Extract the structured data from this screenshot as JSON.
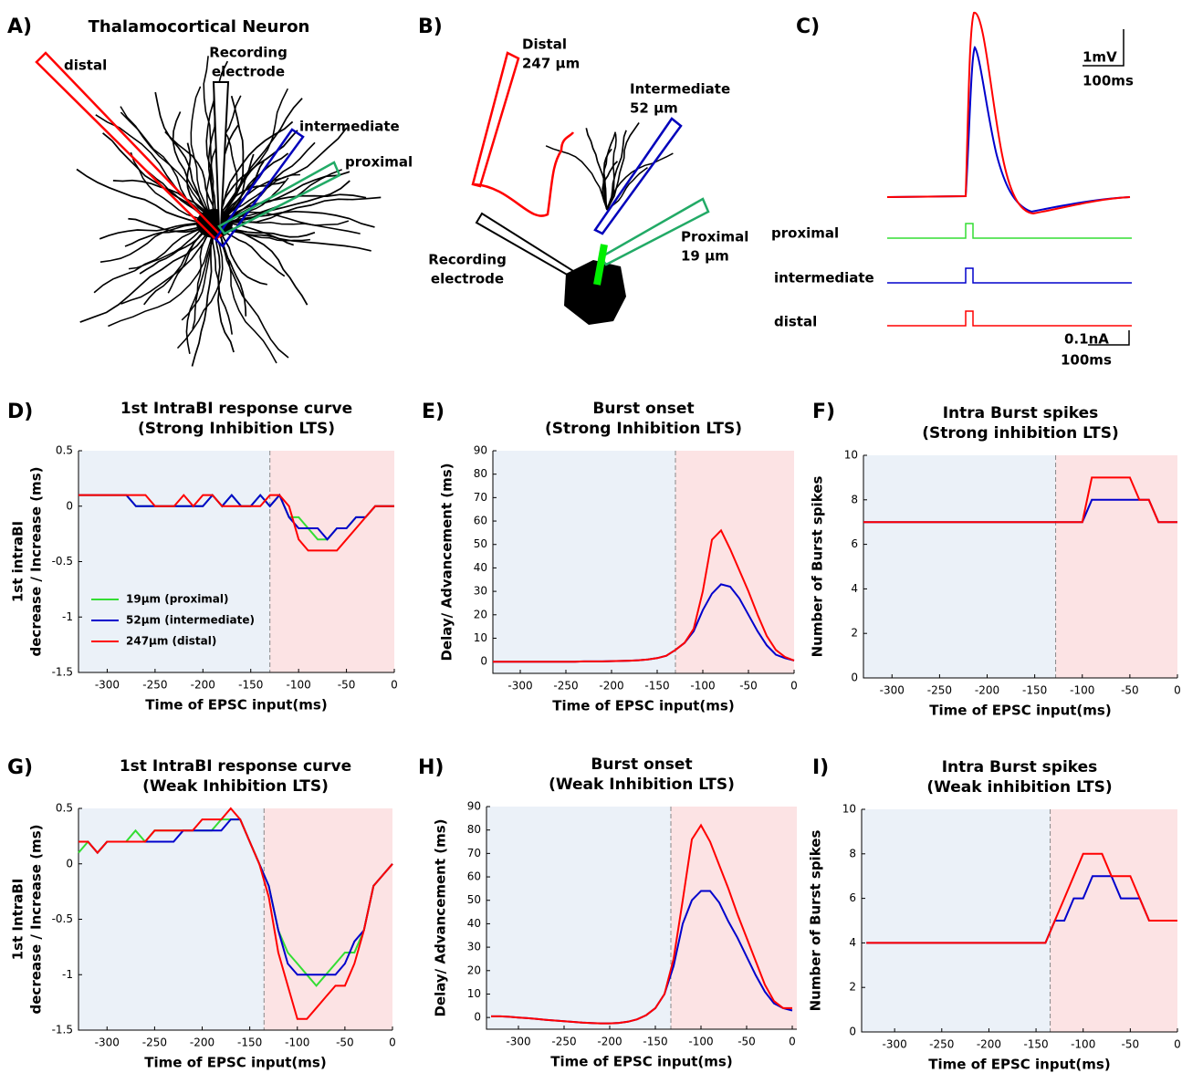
{
  "diagrams": {
    "a": {
      "letter": "A)",
      "title": "Thalamocortical Neuron",
      "distal": "distal",
      "recording": [
        "Recording",
        "electrode"
      ],
      "intermediate": "intermediate",
      "proximal": "proximal"
    },
    "b": {
      "letter": "B)",
      "distal": [
        "Distal",
        "247 µm"
      ],
      "intermediate": [
        "Intermediate",
        "52 µm"
      ],
      "proximal": [
        "Proximal",
        "19 µm"
      ],
      "recording": [
        "Recording",
        "electrode"
      ]
    },
    "c": {
      "letter": "C)",
      "voltage_scale": "1mV",
      "voltage_time": "100ms",
      "proximal": "proximal",
      "intermediate": "intermediate",
      "distal": "distal",
      "current_scale": "0.1nA",
      "current_time": "100ms"
    }
  },
  "chart_data": [
    {
      "type": "line",
      "letter": "D)",
      "title": [
        "1st IntraBI response curve",
        "(Strong Inhibition LTS)"
      ],
      "xlabel": "Time of EPSC input(ms)",
      "ylabel": [
        "1st intraBI",
        "decrease / Increase (ms)"
      ],
      "xlim": [
        -330,
        0
      ],
      "xticks": [
        -300,
        -250,
        -200,
        -150,
        -100,
        -50,
        0
      ],
      "ylim": [
        -1.5,
        0.5
      ],
      "yticks": [
        -1.5,
        -1,
        -0.5,
        0,
        0.5
      ],
      "divider_x": -130,
      "x": [
        -330,
        -320,
        -310,
        -300,
        -290,
        -280,
        -270,
        -260,
        -250,
        -240,
        -230,
        -220,
        -210,
        -200,
        -190,
        -180,
        -170,
        -160,
        -150,
        -140,
        -130,
        -120,
        -110,
        -100,
        -90,
        -80,
        -70,
        -60,
        -50,
        -40,
        -30,
        -20,
        -10,
        0
      ],
      "series": [
        {
          "name": "19µm (proximal)",
          "color": "#33dd33",
          "values": [
            0.1,
            0.1,
            0.1,
            0.1,
            0.1,
            0.1,
            0,
            0,
            0,
            0,
            0,
            0,
            0,
            0,
            0.1,
            0,
            0.1,
            0,
            0,
            0.1,
            0,
            0.1,
            -0.1,
            -0.1,
            -0.2,
            -0.3,
            -0.3,
            -0.2,
            -0.2,
            -0.1,
            -0.1,
            0,
            0,
            0
          ]
        },
        {
          "name": "52µm (intermediate)",
          "color": "#0000cc",
          "values": [
            0.1,
            0.1,
            0.1,
            0.1,
            0.1,
            0.1,
            0,
            0,
            0,
            0,
            0,
            0,
            0,
            0,
            0.1,
            0,
            0.1,
            0,
            0,
            0.1,
            0,
            0.1,
            -0.1,
            -0.2,
            -0.2,
            -0.2,
            -0.3,
            -0.2,
            -0.2,
            -0.1,
            -0.1,
            0,
            0,
            0
          ]
        },
        {
          "name": "247µm (distal)",
          "color": "#ff0000",
          "values": [
            0.1,
            0.1,
            0.1,
            0.1,
            0.1,
            0.1,
            0.1,
            0.1,
            0,
            0,
            0,
            0.1,
            0,
            0.1,
            0.1,
            0,
            0,
            0,
            0,
            0,
            0.1,
            0.1,
            0,
            -0.3,
            -0.4,
            -0.4,
            -0.4,
            -0.4,
            -0.3,
            -0.2,
            -0.1,
            0,
            0,
            0
          ]
        }
      ]
    },
    {
      "type": "line",
      "letter": "E)",
      "title": [
        "Burst onset",
        "(Strong Inhibition LTS)"
      ],
      "xlabel": "Time of EPSC input(ms)",
      "ylabel": [
        "Delay/ Advancement (ms)"
      ],
      "xlim": [
        -330,
        0
      ],
      "xticks": [
        -300,
        -250,
        -200,
        -150,
        -100,
        -50,
        0
      ],
      "ylim": [
        -5,
        90
      ],
      "yticks": [
        0,
        10,
        20,
        30,
        40,
        50,
        60,
        70,
        80,
        90
      ],
      "divider_x": -130,
      "x": [
        -330,
        -320,
        -310,
        -300,
        -290,
        -280,
        -270,
        -260,
        -250,
        -240,
        -230,
        -220,
        -210,
        -200,
        -190,
        -180,
        -170,
        -160,
        -150,
        -140,
        -130,
        -120,
        -110,
        -100,
        -90,
        -80,
        -70,
        -60,
        -50,
        -40,
        -30,
        -20,
        -10,
        0
      ],
      "series": [
        {
          "color": "#0000cc",
          "values": [
            0,
            0,
            0,
            0,
            0,
            0,
            0,
            0,
            0,
            0,
            0.1,
            0.1,
            0.1,
            0.2,
            0.3,
            0.4,
            0.6,
            0.9,
            1.5,
            2.5,
            5,
            8,
            13,
            22,
            29,
            33,
            32,
            27,
            20,
            13,
            7,
            3,
            1.5,
            0.5
          ]
        },
        {
          "color": "#ff0000",
          "values": [
            0,
            0,
            0,
            0,
            0,
            0,
            0,
            0,
            0,
            0,
            0.1,
            0.1,
            0.1,
            0.2,
            0.3,
            0.4,
            0.6,
            0.9,
            1.5,
            2.5,
            5,
            8,
            14,
            30,
            52,
            56,
            48,
            39,
            30,
            20,
            11,
            5,
            2,
            0.5
          ]
        }
      ]
    },
    {
      "type": "line",
      "letter": "F)",
      "title": [
        "Intra Burst spikes",
        "(Strong inhibition LTS)"
      ],
      "xlabel": "Time of EPSC input(ms)",
      "ylabel": [
        "Number of Burst spikes"
      ],
      "xlim": [
        -330,
        0
      ],
      "xticks": [
        -300,
        -250,
        -200,
        -150,
        -100,
        -50,
        0
      ],
      "ylim": [
        0,
        10
      ],
      "yticks": [
        0,
        2,
        4,
        6,
        8,
        10
      ],
      "divider_x": -128,
      "x": [
        -330,
        -320,
        -310,
        -300,
        -290,
        -280,
        -270,
        -260,
        -250,
        -240,
        -230,
        -220,
        -210,
        -200,
        -190,
        -180,
        -170,
        -160,
        -150,
        -140,
        -130,
        -120,
        -110,
        -100,
        -90,
        -80,
        -70,
        -60,
        -50,
        -40,
        -30,
        -20,
        -10,
        0
      ],
      "series": [
        {
          "color": "#0000cc",
          "values": [
            7,
            7,
            7,
            7,
            7,
            7,
            7,
            7,
            7,
            7,
            7,
            7,
            7,
            7,
            7,
            7,
            7,
            7,
            7,
            7,
            7,
            7,
            7,
            7,
            8,
            8,
            8,
            8,
            8,
            8,
            8,
            7,
            7,
            7
          ]
        },
        {
          "color": "#ff0000",
          "values": [
            7,
            7,
            7,
            7,
            7,
            7,
            7,
            7,
            7,
            7,
            7,
            7,
            7,
            7,
            7,
            7,
            7,
            7,
            7,
            7,
            7,
            7,
            7,
            7,
            9,
            9,
            9,
            9,
            9,
            8,
            8,
            7,
            7,
            7
          ]
        }
      ]
    },
    {
      "type": "line",
      "letter": "G)",
      "title": [
        "1st IntraBI response curve",
        "(Weak Inhibition LTS)"
      ],
      "xlabel": "Time of EPSC input(ms)",
      "ylabel": [
        "1st IntraBI",
        "decrease / Increase (ms)"
      ],
      "xlim": [
        -330,
        0
      ],
      "xticks": [
        -300,
        -250,
        -200,
        -150,
        -100,
        -50,
        0
      ],
      "ylim": [
        -1.5,
        0.5
      ],
      "yticks": [
        -1.5,
        -1,
        -0.5,
        0,
        0.5
      ],
      "divider_x": -135,
      "x": [
        -330,
        -320,
        -310,
        -300,
        -290,
        -280,
        -270,
        -260,
        -250,
        -240,
        -230,
        -220,
        -210,
        -200,
        -190,
        -180,
        -170,
        -160,
        -150,
        -140,
        -130,
        -120,
        -110,
        -100,
        -90,
        -80,
        -70,
        -60,
        -50,
        -40,
        -30,
        -20,
        -10,
        0
      ],
      "series": [
        {
          "color": "#33dd33",
          "values": [
            0.1,
            0.2,
            0.1,
            0.2,
            0.2,
            0.2,
            0.3,
            0.2,
            0.3,
            0.3,
            0.3,
            0.3,
            0.3,
            0.3,
            0.3,
            0.4,
            0.4,
            0.4,
            0.2,
            0,
            -0.2,
            -0.6,
            -0.8,
            -0.9,
            -1,
            -1.1,
            -1,
            -0.9,
            -0.8,
            -0.8,
            -0.6,
            -0.2,
            -0.1,
            0
          ]
        },
        {
          "color": "#0000cc",
          "values": [
            0.2,
            0.2,
            0.1,
            0.2,
            0.2,
            0.2,
            0.2,
            0.2,
            0.2,
            0.2,
            0.2,
            0.3,
            0.3,
            0.3,
            0.3,
            0.3,
            0.4,
            0.4,
            0.2,
            0,
            -0.2,
            -0.6,
            -0.9,
            -1,
            -1,
            -1,
            -1,
            -1,
            -0.9,
            -0.7,
            -0.6,
            -0.2,
            -0.1,
            0
          ]
        },
        {
          "color": "#ff0000",
          "values": [
            0.2,
            0.2,
            0.1,
            0.2,
            0.2,
            0.2,
            0.2,
            0.2,
            0.3,
            0.3,
            0.3,
            0.3,
            0.3,
            0.4,
            0.4,
            0.4,
            0.5,
            0.4,
            0.2,
            0,
            -0.3,
            -0.8,
            -1.1,
            -1.4,
            -1.4,
            -1.3,
            -1.2,
            -1.1,
            -1.1,
            -0.9,
            -0.6,
            -0.2,
            -0.1,
            0
          ]
        }
      ]
    },
    {
      "type": "line",
      "letter": "H)",
      "title": [
        "Burst onset",
        "(Weak Inhibition LTS)"
      ],
      "xlabel": "Time of EPSC input(ms)",
      "ylabel": [
        "Delay/ Advancement (ms)"
      ],
      "xlim": [
        -335,
        5
      ],
      "xticks": [
        -300,
        -250,
        -200,
        -150,
        -100,
        -50,
        0
      ],
      "ylim": [
        -5,
        90
      ],
      "yticks": [
        0,
        10,
        20,
        30,
        40,
        50,
        60,
        70,
        80,
        90
      ],
      "divider_x": -133,
      "x": [
        -330,
        -320,
        -310,
        -300,
        -290,
        -280,
        -270,
        -260,
        -250,
        -240,
        -230,
        -220,
        -210,
        -200,
        -190,
        -180,
        -170,
        -160,
        -150,
        -140,
        -130,
        -120,
        -110,
        -100,
        -90,
        -80,
        -70,
        -60,
        -50,
        -40,
        -30,
        -20,
        -10,
        0
      ],
      "series": [
        {
          "color": "#0000cc",
          "values": [
            0.5,
            0.5,
            0.3,
            0,
            -0.3,
            -0.6,
            -1,
            -1.3,
            -1.6,
            -1.9,
            -2.2,
            -2.4,
            -2.5,
            -2.5,
            -2.3,
            -1.8,
            -0.8,
            1,
            4,
            10,
            22,
            40,
            50,
            54,
            54,
            49,
            41,
            34,
            26,
            18,
            11,
            6,
            4,
            3
          ]
        },
        {
          "color": "#ff0000",
          "values": [
            0.5,
            0.5,
            0.3,
            0,
            -0.3,
            -0.6,
            -1,
            -1.3,
            -1.6,
            -1.9,
            -2.2,
            -2.4,
            -2.5,
            -2.5,
            -2.3,
            -1.8,
            -0.8,
            1,
            4,
            10,
            25,
            50,
            76,
            82,
            75,
            65,
            55,
            44,
            34,
            24,
            14,
            7,
            4,
            4
          ]
        }
      ]
    },
    {
      "type": "line",
      "letter": "I)",
      "title": [
        "Intra Burst spikes",
        "(Weak inhibition LTS)"
      ],
      "xlabel": "Time of EPSC input(ms)",
      "ylabel": [
        "Number of Burst spikes"
      ],
      "xlim": [
        -335,
        0
      ],
      "xticks": [
        -300,
        -250,
        -200,
        -150,
        -100,
        -50,
        0
      ],
      "ylim": [
        0,
        10
      ],
      "yticks": [
        0,
        2,
        4,
        6,
        8,
        10
      ],
      "divider_x": -135,
      "x": [
        -330,
        -320,
        -310,
        -300,
        -290,
        -280,
        -270,
        -260,
        -250,
        -240,
        -230,
        -220,
        -210,
        -200,
        -190,
        -180,
        -170,
        -160,
        -150,
        -140,
        -130,
        -120,
        -110,
        -100,
        -90,
        -80,
        -70,
        -60,
        -50,
        -40,
        -30,
        -20,
        -10,
        0
      ],
      "series": [
        {
          "color": "#0000cc",
          "values": [
            4,
            4,
            4,
            4,
            4,
            4,
            4,
            4,
            4,
            4,
            4,
            4,
            4,
            4,
            4,
            4,
            4,
            4,
            4,
            4,
            5,
            5,
            6,
            6,
            7,
            7,
            7,
            6,
            6,
            6,
            5,
            5,
            5,
            5
          ]
        },
        {
          "color": "#ff0000",
          "values": [
            4,
            4,
            4,
            4,
            4,
            4,
            4,
            4,
            4,
            4,
            4,
            4,
            4,
            4,
            4,
            4,
            4,
            4,
            4,
            4,
            5,
            6,
            7,
            8,
            8,
            8,
            7,
            7,
            7,
            6,
            5,
            5,
            5,
            5
          ]
        }
      ]
    }
  ]
}
